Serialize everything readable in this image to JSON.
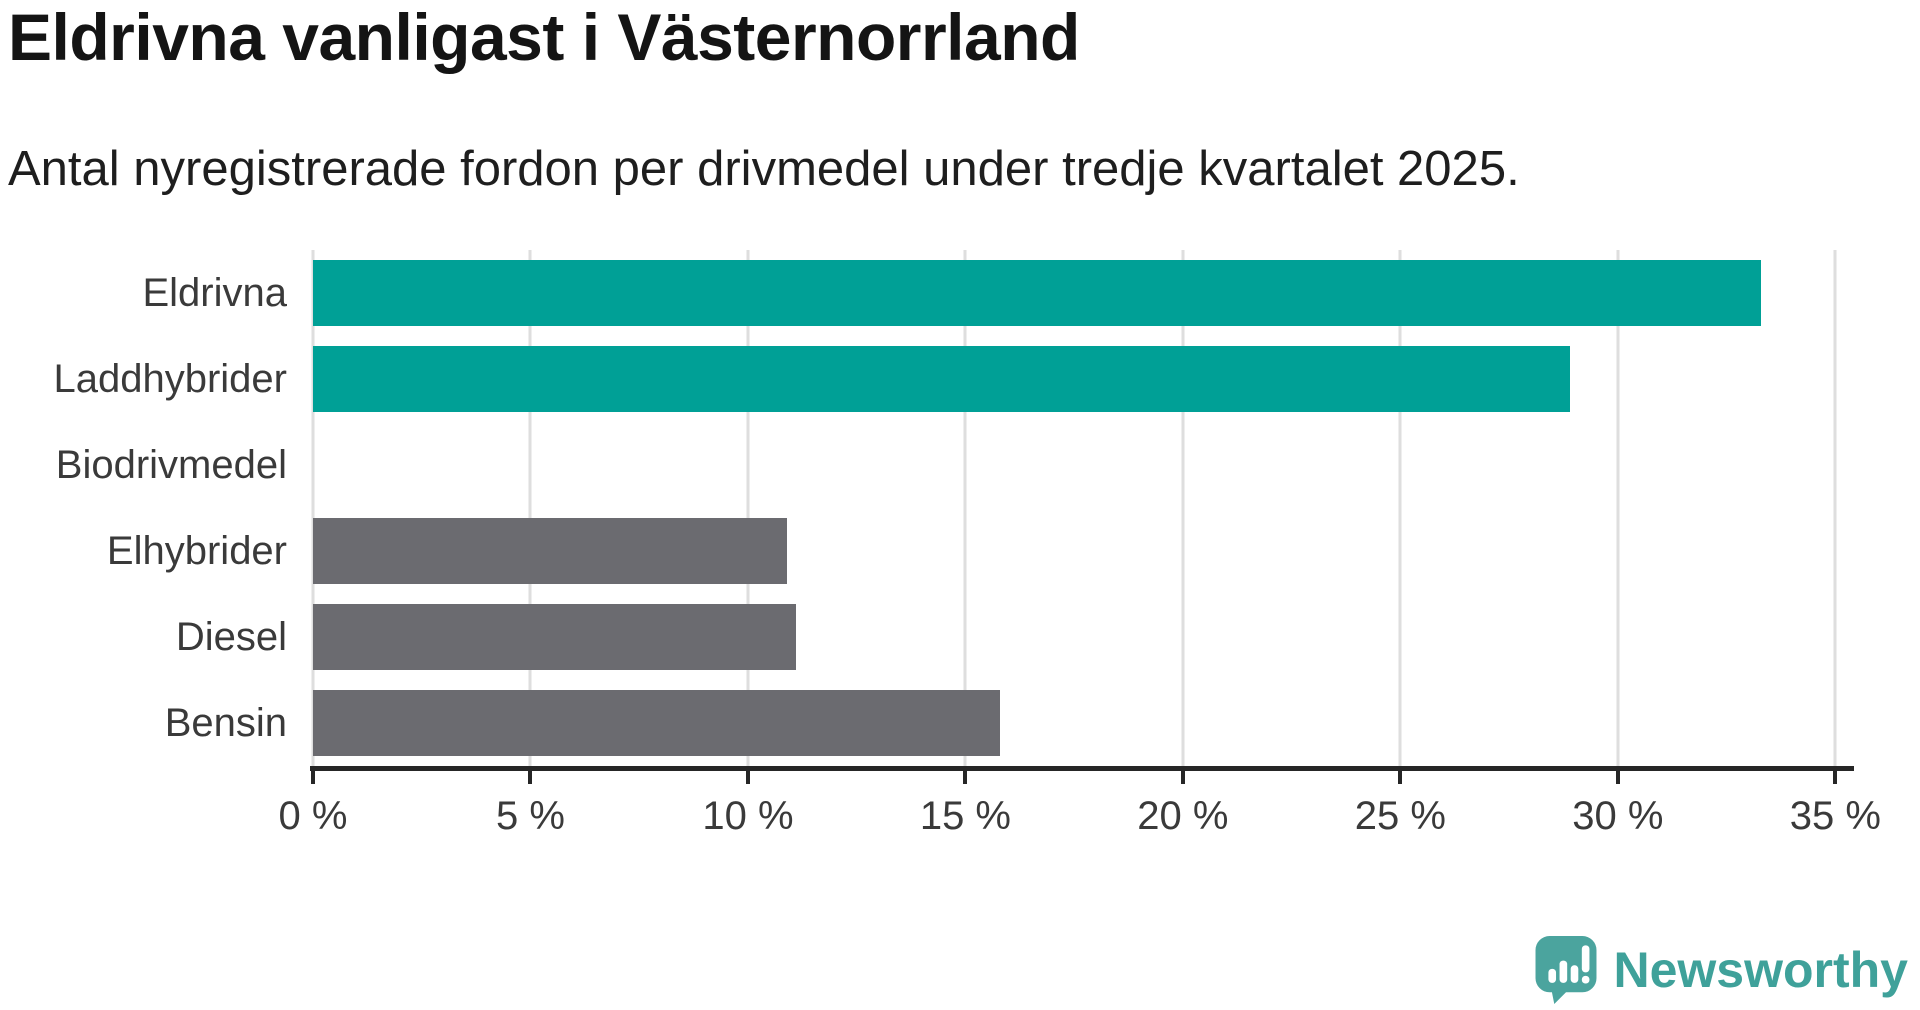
{
  "header": {
    "title": "Eldrivna vanligast i Västernorrland",
    "subtitle": "Antal nyregistrerade fordon per drivmedel under tredje kvartalet 2025."
  },
  "chart_data": {
    "type": "bar",
    "orientation": "horizontal",
    "title": "Eldrivna vanligast i Västernorrland",
    "subtitle": "Antal nyregistrerade fordon per drivmedel under tredje kvartalet 2025.",
    "categories": [
      "Eldrivna",
      "Laddhybrider",
      "Biodrivmedel",
      "Elhybrider",
      "Diesel",
      "Bensin"
    ],
    "values": [
      33.3,
      28.9,
      0,
      10.9,
      11.1,
      15.8
    ],
    "unit": "%",
    "xlim": [
      0,
      35.2
    ],
    "xticks": [
      0,
      5,
      10,
      15,
      20,
      25,
      30,
      35
    ],
    "xtick_labels": [
      "0 %",
      "5 %",
      "10 %",
      "15 %",
      "20 %",
      "25 %",
      "30 %",
      "35 %"
    ],
    "grid": "vertical-only",
    "legend": "none",
    "colors": {
      "highlight_teal": "#00A096",
      "neutral_gray": "#6B6B70",
      "gridline": "#dedede",
      "axis": "#262626"
    },
    "bar_colors_by_category": [
      "#00A096",
      "#00A096",
      "#6B6B70",
      "#6B6B70",
      "#6B6B70",
      "#6B6B70"
    ]
  },
  "footer": {
    "brand": "Newsworthy",
    "brand_color": "#3FA19A",
    "icon_color": "#4BA49E",
    "logo_icon": "newsworthy-speech-bubble-chart-icon"
  }
}
